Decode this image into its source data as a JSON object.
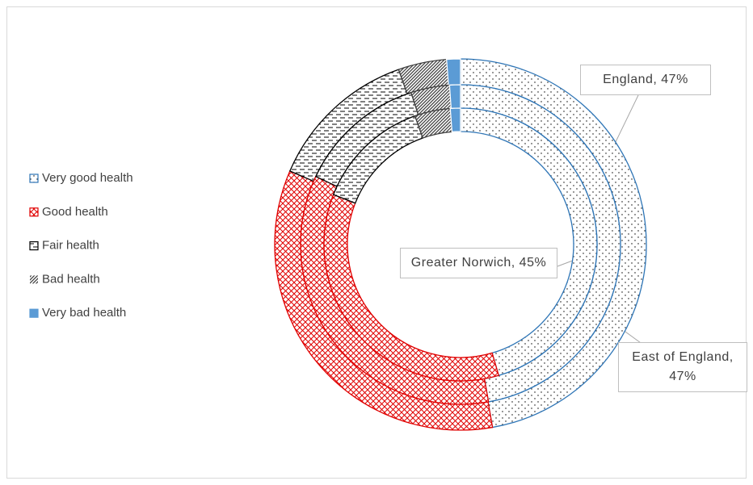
{
  "chart_data": {
    "type": "doughnut",
    "categories": [
      "Very good health",
      "Good health",
      "Fair health",
      "Bad health",
      "Very bad health"
    ],
    "category_colors": [
      "#2e75b6",
      "#e00000",
      "#000000",
      "#404040",
      "#5b9bd5"
    ],
    "series": [
      {
        "name": "England",
        "values": [
          47.2,
          34.2,
          13.1,
          4.2,
          1.2
        ],
        "value_labels": [
          "England, 47%",
          null,
          null,
          null,
          null
        ]
      },
      {
        "name": "East of England",
        "values": [
          47.2,
          34.8,
          13.0,
          3.9,
          1.1
        ],
        "value_labels": [
          "East of England, 47%",
          null,
          null,
          null,
          null
        ]
      },
      {
        "name": "Greater Norwich",
        "values": [
          45.4,
          35.4,
          13.6,
          4.2,
          1.2
        ],
        "value_labels": [
          "Greater Norwich, 45%",
          null,
          null,
          null,
          null
        ]
      }
    ]
  }
}
